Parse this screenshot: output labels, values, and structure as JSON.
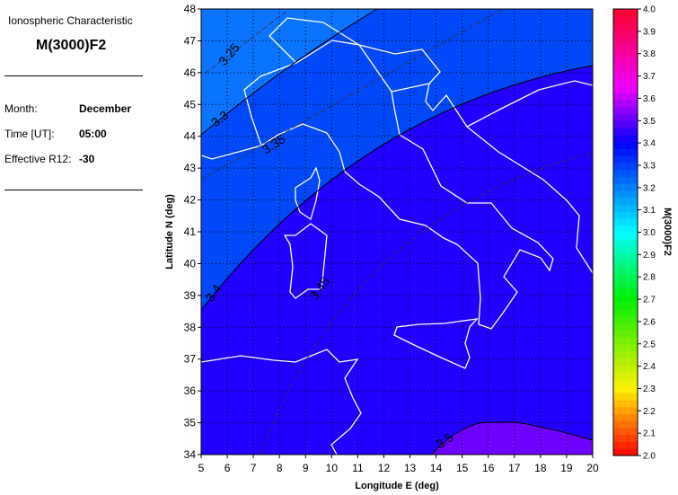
{
  "panel": {
    "heading": "Ionospheric Characteristic",
    "parameter": "M(3000)F2",
    "rows": [
      {
        "label": "Month:",
        "value": "December"
      },
      {
        "label": "Time [UT]:",
        "value": "05:00"
      },
      {
        "label": "Effective R12:",
        "value": "-30"
      }
    ]
  },
  "map": {
    "xlabel": "Longitude E (deg)",
    "ylabel": "Latitude N (deg)",
    "xlim": [
      5,
      20
    ],
    "ylim": [
      34,
      48
    ],
    "x_ticks": [
      "5",
      "6",
      "7",
      "8",
      "9",
      "10",
      "11",
      "12",
      "13",
      "14",
      "15",
      "16",
      "17",
      "18",
      "19",
      "20"
    ],
    "y_ticks": [
      "34",
      "35",
      "36",
      "37",
      "38",
      "39",
      "40",
      "41",
      "42",
      "43",
      "44",
      "45",
      "46",
      "47",
      "48"
    ],
    "grid": "dotted",
    "contour_labels": [
      "3.25",
      "3.3",
      "3.35",
      "3.4",
      "3.45",
      "3.5"
    ],
    "region_colors": {
      "above_3.3": "#0a74ff",
      "3.3_3.4": "#0048f8",
      "3.4_3.5": "#2200ff",
      "above_3.5": "#7000ff"
    },
    "coastline_color": "#ffffff"
  },
  "colorbar": {
    "title": "M(3000)F2",
    "range": [
      2.0,
      4.0
    ],
    "ticks": [
      "4.0",
      "3.9",
      "3.8",
      "3.7",
      "3.6",
      "3.5",
      "3.4",
      "3.3",
      "3.2",
      "3.1",
      "3.0",
      "2.9",
      "2.8",
      "2.7",
      "2.6",
      "2.5",
      "2.4",
      "2.3",
      "2.2",
      "2.1",
      "2.0"
    ]
  }
}
